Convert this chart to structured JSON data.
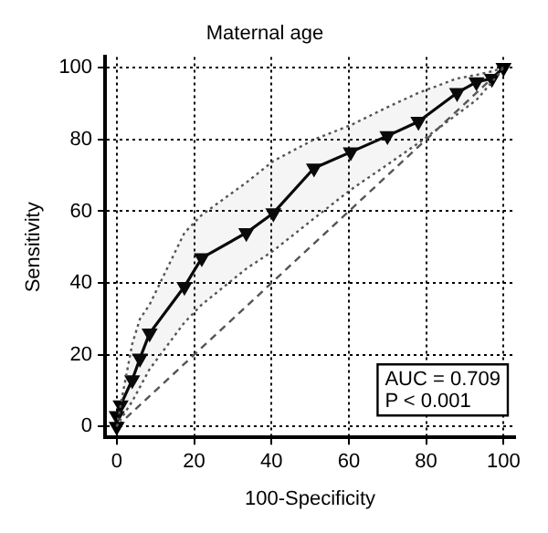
{
  "chart_data": {
    "type": "line",
    "title": "Maternal age",
    "xlabel": "100-Specificity",
    "ylabel": "Sensitivity",
    "xlim": [
      -3,
      103
    ],
    "ylim": [
      -3,
      103
    ],
    "xticks": [
      0,
      20,
      40,
      60,
      80,
      100
    ],
    "yticks": [
      0,
      20,
      40,
      60,
      80,
      100
    ],
    "grid": true,
    "legend": false,
    "annotations": [
      "AUC = 0.709",
      "P < 0.001"
    ],
    "series": [
      {
        "color": "#000000",
        "marker": "triangle",
        "line_style": "solid",
        "x": [
          0,
          0,
          1,
          4,
          6,
          8.5,
          17.5,
          22,
          33.5,
          40.5,
          51,
          60.5,
          70,
          78,
          88,
          93,
          97,
          100
        ],
        "values": [
          0,
          3,
          6,
          13,
          19,
          26,
          39,
          47,
          54,
          59.5,
          72,
          76.5,
          81,
          85,
          93,
          96,
          97,
          100
        ],
        "lower": [
          0,
          0,
          2,
          7,
          11,
          16,
          29,
          34,
          44,
          49,
          58,
          66,
          73,
          79,
          87,
          91,
          96,
          100
        ],
        "upper": [
          0,
          0,
          6,
          23,
          30,
          34,
          54,
          59,
          68,
          74,
          80,
          84,
          89,
          93,
          97,
          98,
          99,
          100
        ]
      },
      {
        "color": "#555555",
        "marker": "none",
        "line_style": "dashed",
        "x": [
          0,
          100
        ],
        "values": [
          0,
          100
        ]
      }
    ]
  }
}
